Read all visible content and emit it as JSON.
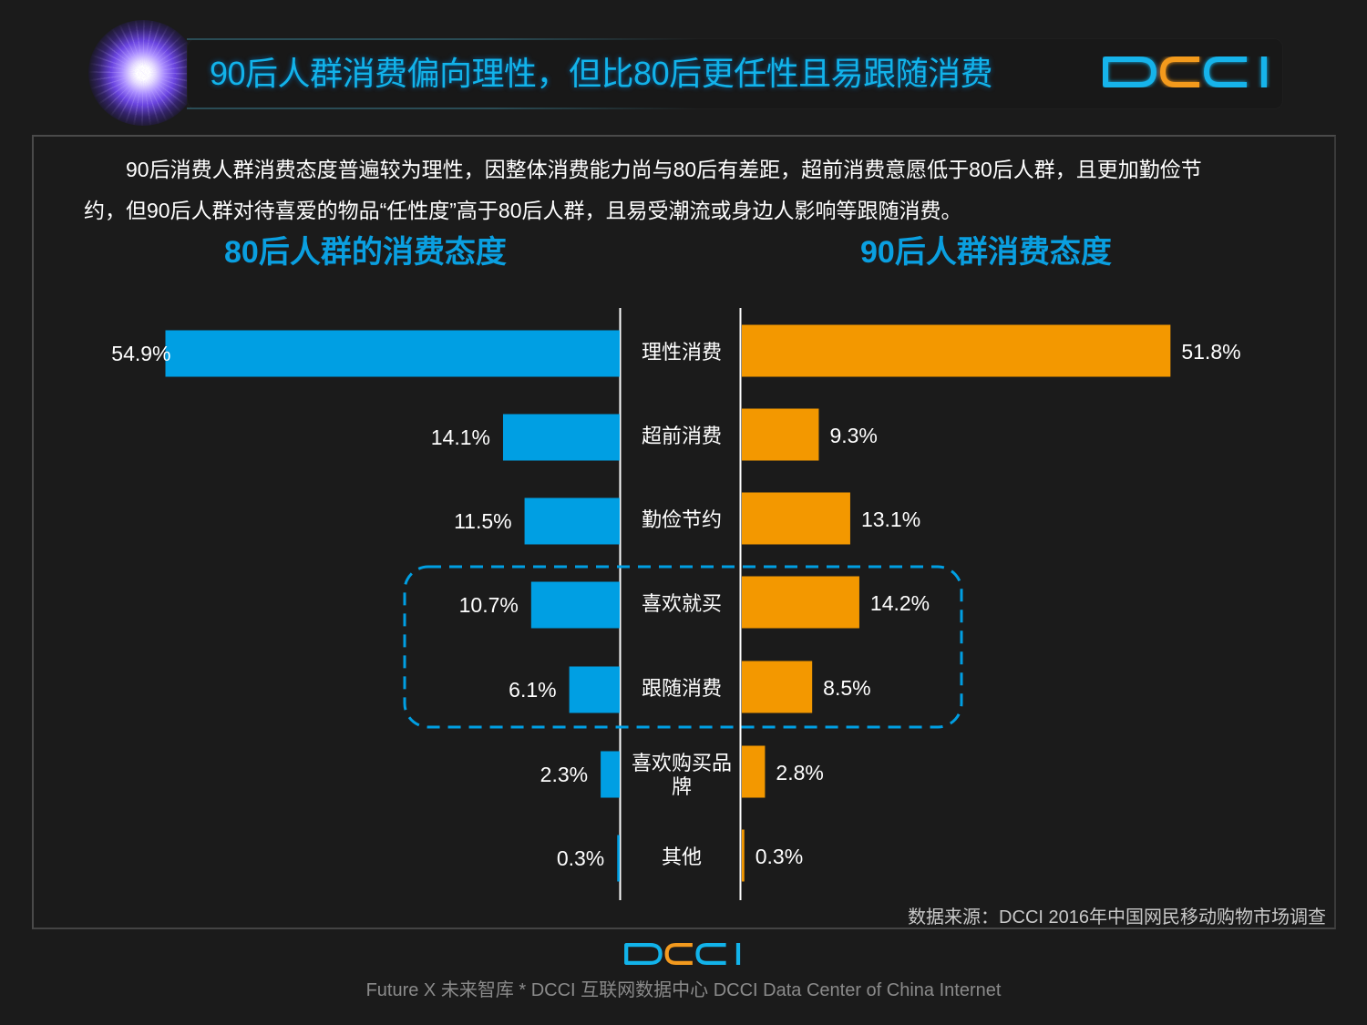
{
  "header": {
    "title": "90后人群消费偏向理性，但比80后更任性且易跟随消费",
    "logo": {
      "letters": [
        "D",
        "C",
        "C",
        "I"
      ],
      "letter_colors": [
        "#12b3ea",
        "#f39a1e",
        "#12b3ea",
        "#12b3ea"
      ]
    }
  },
  "intro": {
    "line1": "90后消费人群消费态度普遍较为理性，因整体消费能力尚与80后有差距，超前消费意愿低于80后人群，且更加勤俭节",
    "line2": "约，但90后人群对待喜爱的物品“任性度”高于80后人群，且易受潮流或身边人影响等跟随消费。"
  },
  "chart_data": {
    "type": "bar",
    "orientation": "horizontal-butterfly",
    "categories": [
      "理性消费",
      "超前消费",
      "勤俭节约",
      "喜欢就买",
      "跟随消费",
      "喜欢购买品牌",
      "其他"
    ],
    "series": [
      {
        "name": "80后人群的消费态度",
        "side": "left",
        "color": "#009fe3",
        "values": [
          54.9,
          14.1,
          11.5,
          10.7,
          6.1,
          2.3,
          0.3
        ],
        "labels": [
          "54.9%",
          "14.1%",
          "11.5%",
          "10.7%",
          "6.1%",
          "2.3%",
          "0.3%"
        ]
      },
      {
        "name": "90后人群消费态度",
        "side": "right",
        "color": "#f39800",
        "values": [
          51.8,
          9.3,
          13.1,
          14.2,
          8.5,
          2.8,
          0.3
        ],
        "labels": [
          "51.8%",
          "9.3%",
          "13.1%",
          "14.2%",
          "8.5%",
          "2.8%",
          "0.3%"
        ]
      }
    ],
    "unit": "%",
    "highlight": {
      "categories": [
        "喜欢就买",
        "跟随消费"
      ],
      "style": "dashed-rounded-box",
      "color": "#009fe3"
    },
    "xlim": [
      0,
      60
    ],
    "grid": false
  },
  "source": "数据来源：DCCI 2016年中国网民移动购物市场调查",
  "footer": {
    "logo": {
      "letters": [
        "D",
        "C",
        "C",
        "I"
      ],
      "letter_colors": [
        "#12b3ea",
        "#f39a1e",
        "#12b3ea",
        "#12b3ea"
      ]
    },
    "text": "Future X 未来智库 * DCCI 互联网数据中心 DCCI Data Center of China Internet"
  }
}
